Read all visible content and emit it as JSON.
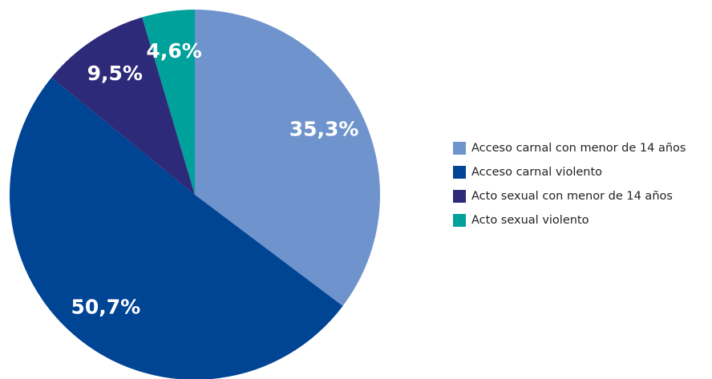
{
  "chart_data": {
    "type": "pie",
    "categories": [
      "Acceso carnal con menor de 14 años",
      "Acceso carnal violento",
      "Acto sexual con menor de 14 años",
      "Acto sexual violento"
    ],
    "values": [
      35.3,
      50.7,
      9.5,
      4.6
    ],
    "value_labels": [
      "35,3%",
      "50,7%",
      "9,5%",
      "4,6%"
    ],
    "colors": [
      "#6f93cc",
      "#004494",
      "#2e2a7a",
      "#00a19a"
    ],
    "legend": "right"
  }
}
